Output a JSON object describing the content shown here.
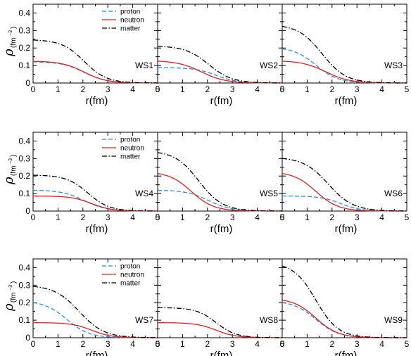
{
  "figure": {
    "ylabel_symbol": "ρ",
    "ylabel_unit_open": "(fm",
    "ylabel_unit_sup": "−3",
    "ylabel_unit_close": ")"
  },
  "colors": {
    "proton": "#2b8fe0",
    "neutron": "#e0201e",
    "matter": "#000000"
  },
  "chart_data": [
    {
      "type": "line",
      "row": 1,
      "xlabel": "r(fm)",
      "xlim": [
        0,
        5
      ],
      "ylim": [
        0,
        0.45
      ],
      "x_ticks": [
        "0",
        "1",
        "2",
        "3",
        "4",
        "5"
      ],
      "y_ticks": [
        "0",
        "0.1",
        "0.2",
        "0.3",
        "0.4"
      ],
      "legend": [
        "proton",
        "neutron",
        "matter"
      ],
      "legend_position": "top-right of first panel",
      "panels": [
        {
          "label": "WS1",
          "series": [
            {
              "name": "proton",
              "style": "dashed",
              "color": "#2b8fe0",
              "rho0": 0.122,
              "R": 2.05,
              "a": 0.45
            },
            {
              "name": "neutron",
              "style": "solid",
              "color": "#e0201e",
              "rho0": 0.125,
              "R": 2.05,
              "a": 0.45
            },
            {
              "name": "matter",
              "style": "dash-dot",
              "color": "#000000",
              "rho0": 0.248,
              "R": 2.05,
              "a": 0.45
            }
          ]
        },
        {
          "label": "WS2",
          "series": [
            {
              "name": "proton",
              "style": "dashed",
              "color": "#2b8fe0",
              "rho0": 0.088,
              "R": 2.35,
              "a": 0.42
            },
            {
              "name": "neutron",
              "style": "solid",
              "color": "#e0201e",
              "rho0": 0.128,
              "R": 1.75,
              "a": 0.48
            },
            {
              "name": "matter",
              "style": "dash-dot",
              "color": "#000000",
              "rho0": 0.212,
              "R": 2.05,
              "a": 0.47
            }
          ]
        },
        {
          "label": "WS3",
          "series": [
            {
              "name": "proton",
              "style": "dashed",
              "color": "#2b8fe0",
              "rho0": 0.205,
              "R": 1.35,
              "a": 0.45
            },
            {
              "name": "neutron",
              "style": "solid",
              "color": "#e0201e",
              "rho0": 0.128,
              "R": 1.75,
              "a": 0.48
            },
            {
              "name": "matter",
              "style": "dash-dot",
              "color": "#000000",
              "rho0": 0.335,
              "R": 1.6,
              "a": 0.48
            }
          ]
        }
      ]
    },
    {
      "type": "line",
      "row": 2,
      "xlabel": "r(fm)",
      "xlim": [
        0,
        5
      ],
      "ylim": [
        0,
        0.45
      ],
      "x_ticks": [
        "0",
        "1",
        "2",
        "3",
        "4",
        "5"
      ],
      "y_ticks": [
        "0",
        "0.1",
        "0.2",
        "0.3",
        "0.4"
      ],
      "legend": [
        "proton",
        "neutron",
        "matter"
      ],
      "legend_position": "top-right of first panel",
      "panels": [
        {
          "label": "WS4",
          "series": [
            {
              "name": "proton",
              "style": "dashed",
              "color": "#2b8fe0",
              "rho0": 0.12,
              "R": 2.05,
              "a": 0.45
            },
            {
              "name": "neutron",
              "style": "solid",
              "color": "#e0201e",
              "rho0": 0.086,
              "R": 2.35,
              "a": 0.4
            },
            {
              "name": "matter",
              "style": "dash-dot",
              "color": "#000000",
              "rho0": 0.206,
              "R": 2.2,
              "a": 0.43
            }
          ]
        },
        {
          "label": "WS5",
          "series": [
            {
              "name": "proton",
              "style": "dashed",
              "color": "#2b8fe0",
              "rho0": 0.12,
              "R": 2.05,
              "a": 0.45
            },
            {
              "name": "neutron",
              "style": "solid",
              "color": "#e0201e",
              "rho0": 0.225,
              "R": 1.35,
              "a": 0.45
            },
            {
              "name": "matter",
              "style": "dash-dot",
              "color": "#000000",
              "rho0": 0.345,
              "R": 1.65,
              "a": 0.48
            }
          ]
        },
        {
          "label": "WS6",
          "series": [
            {
              "name": "proton",
              "style": "dashed",
              "color": "#2b8fe0",
              "rho0": 0.086,
              "R": 2.35,
              "a": 0.4
            },
            {
              "name": "neutron",
              "style": "solid",
              "color": "#e0201e",
              "rho0": 0.225,
              "R": 1.35,
              "a": 0.45
            },
            {
              "name": "matter",
              "style": "dash-dot",
              "color": "#000000",
              "rho0": 0.308,
              "R": 1.85,
              "a": 0.5
            }
          ]
        }
      ]
    },
    {
      "type": "line",
      "row": 3,
      "xlabel": "r(fm)",
      "xlim": [
        0,
        5
      ],
      "ylim": [
        0,
        0.45
      ],
      "x_ticks": [
        "0",
        "1",
        "2",
        "3",
        "4",
        "5"
      ],
      "y_ticks": [
        "0",
        "0.1",
        "0.2",
        "0.3",
        "0.4"
      ],
      "legend": [
        "proton",
        "neutron",
        "matter"
      ],
      "legend_position": "top-right of first panel",
      "panels": [
        {
          "label": "WS7",
          "series": [
            {
              "name": "proton",
              "style": "dashed",
              "color": "#2b8fe0",
              "rho0": 0.21,
              "R": 1.35,
              "a": 0.45
            },
            {
              "name": "neutron",
              "style": "solid",
              "color": "#e0201e",
              "rho0": 0.086,
              "R": 2.35,
              "a": 0.4
            },
            {
              "name": "matter",
              "style": "dash-dot",
              "color": "#000000",
              "rho0": 0.3,
              "R": 1.85,
              "a": 0.5
            }
          ]
        },
        {
          "label": "WS8",
          "series": [
            {
              "name": "neutron",
              "style": "solid",
              "color": "#e0201e",
              "rho0": 0.086,
              "R": 2.35,
              "a": 0.4
            },
            {
              "name": "matter",
              "style": "dash-dot",
              "color": "#000000",
              "rho0": 0.172,
              "R": 2.35,
              "a": 0.4
            }
          ]
        },
        {
          "label": "WS9",
          "series": [
            {
              "name": "proton",
              "style": "dashed",
              "color": "#2b8fe0",
              "rho0": 0.21,
              "R": 1.35,
              "a": 0.45
            },
            {
              "name": "neutron",
              "style": "solid",
              "color": "#e0201e",
              "rho0": 0.225,
              "R": 1.35,
              "a": 0.45
            },
            {
              "name": "matter",
              "style": "dash-dot",
              "color": "#000000",
              "rho0": 0.43,
              "R": 1.35,
              "a": 0.45
            }
          ]
        }
      ]
    }
  ]
}
